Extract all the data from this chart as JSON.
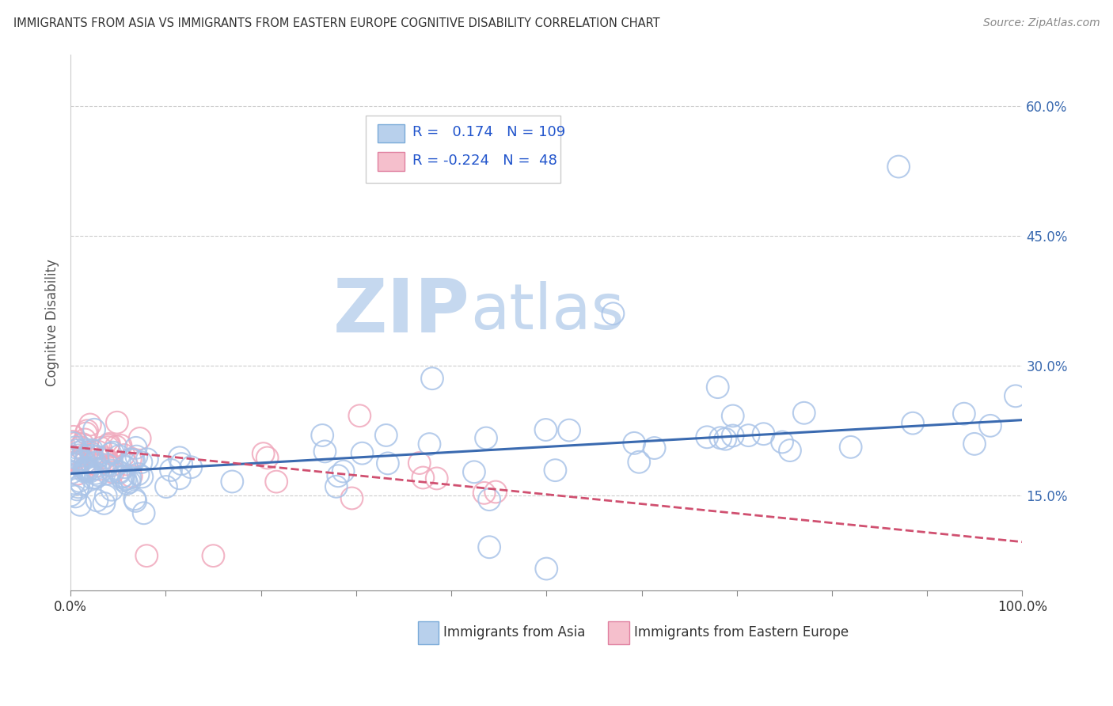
{
  "title": "IMMIGRANTS FROM ASIA VS IMMIGRANTS FROM EASTERN EUROPE COGNITIVE DISABILITY CORRELATION CHART",
  "source": "Source: ZipAtlas.com",
  "ylabel": "Cognitive Disability",
  "right_yticks": [
    "15.0%",
    "30.0%",
    "45.0%",
    "60.0%"
  ],
  "right_ytick_vals": [
    0.15,
    0.3,
    0.45,
    0.6
  ],
  "legend_asia": "Immigrants from Asia",
  "legend_ee": "Immigrants from Eastern Europe",
  "R_asia": 0.174,
  "N_asia": 109,
  "R_ee": -0.224,
  "N_ee": 48,
  "asia_scatter_color": "#aac4e8",
  "asia_line_color": "#3a6ab0",
  "ee_scatter_color": "#f0a8bc",
  "ee_line_color": "#d05070",
  "background_color": "#ffffff",
  "grid_color": "#cccccc",
  "watermark_zip": "ZIP",
  "watermark_atlas": "atlas",
  "watermark_color": "#d0dff0",
  "ylim_low": 0.04,
  "ylim_high": 0.66,
  "xlim_low": 0.0,
  "xlim_high": 1.0,
  "asia_line_x0": 0.0,
  "asia_line_x1": 1.0,
  "asia_line_y0": 0.175,
  "asia_line_y1": 0.237,
  "ee_line_x0": 0.0,
  "ee_line_x1": 1.0,
  "ee_line_y0": 0.206,
  "ee_line_y1": 0.096
}
